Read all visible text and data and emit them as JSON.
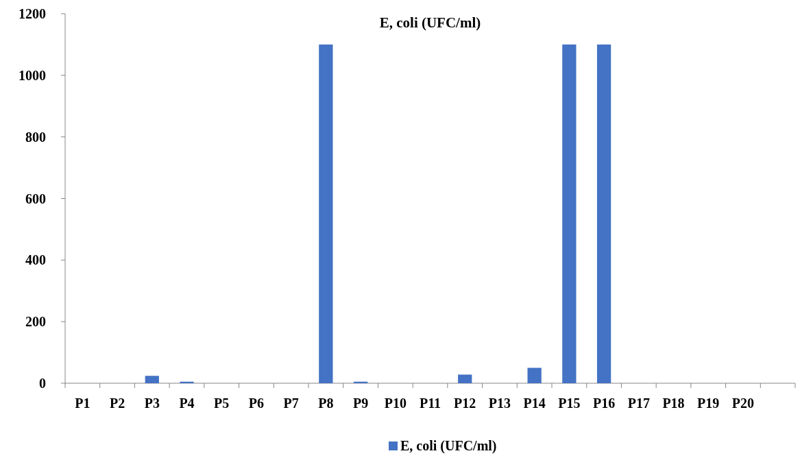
{
  "chart_data": {
    "type": "bar",
    "title": "E, coli (UFC/ml)",
    "categories": [
      "P1",
      "P2",
      "P3",
      "P4",
      "P5",
      "P6",
      "P7",
      "P8",
      "P9",
      "P10",
      "P11",
      "P12",
      "P13",
      "P14",
      "P15",
      "P16",
      "P17",
      "P18",
      "P19",
      "P20",
      null
    ],
    "series": [
      {
        "name": "E, coli (UFC/ml)",
        "color": "#4472c4",
        "values": [
          0,
          0,
          24,
          5,
          0,
          0,
          0,
          1100,
          5,
          0,
          0,
          28,
          0,
          50,
          1100,
          1100,
          0,
          0,
          0,
          0,
          0
        ]
      }
    ],
    "ylim": [
      0,
      1200
    ],
    "yticks": [
      0,
      200,
      400,
      600,
      800,
      1000,
      1200
    ],
    "grid": false,
    "legend": "bottom"
  }
}
